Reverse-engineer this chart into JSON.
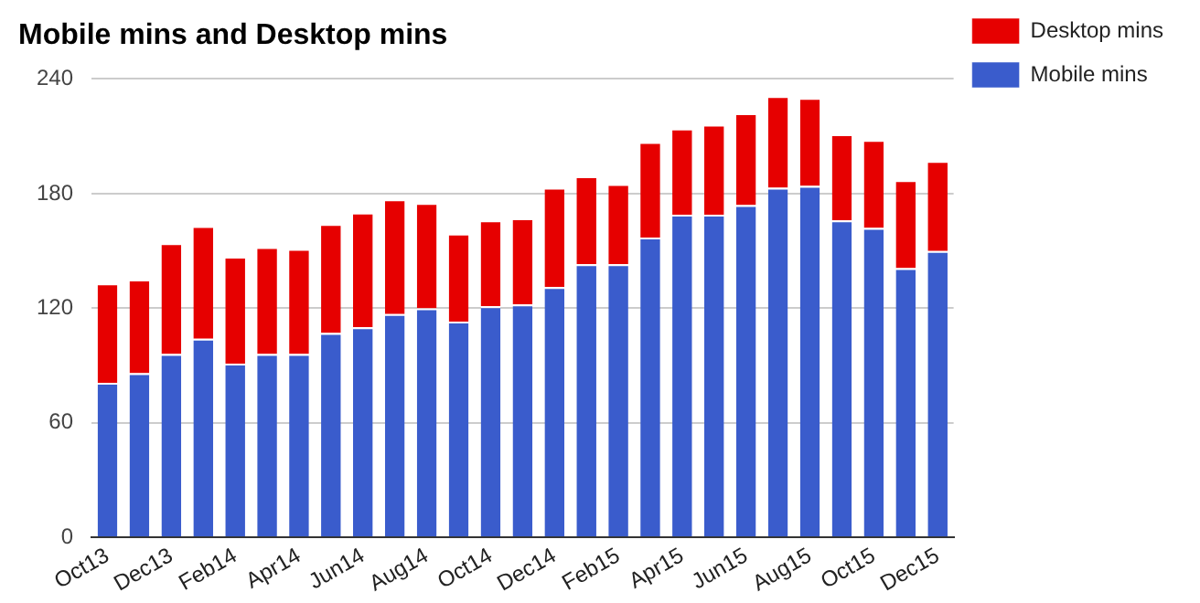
{
  "chart_data": {
    "type": "bar",
    "title": "Mobile mins and Desktop mins",
    "stacked": true,
    "categories": [
      "Oct13",
      null,
      "Dec13",
      null,
      "Feb14",
      null,
      "Apr14",
      null,
      "Jun14",
      null,
      "Aug14",
      null,
      "Oct14",
      null,
      "Dec14",
      null,
      "Feb15",
      null,
      "Apr15",
      null,
      "Jun15",
      null,
      "Aug15",
      null,
      "Oct15",
      null,
      "Dec15"
    ],
    "series": [
      {
        "name": "Mobile mins",
        "color": "#3a5ccc",
        "values": [
          81,
          86,
          96,
          104,
          91,
          96,
          96,
          107,
          110,
          117,
          120,
          113,
          121,
          122,
          131,
          143,
          143,
          157,
          169,
          169,
          174,
          183,
          184,
          166,
          162,
          141,
          150
        ]
      },
      {
        "name": "Desktop mins",
        "color": "#e60000",
        "values": [
          52,
          49,
          58,
          59,
          56,
          56,
          55,
          57,
          60,
          60,
          55,
          46,
          45,
          45,
          52,
          46,
          42,
          50,
          45,
          47,
          48,
          48,
          46,
          45,
          46,
          46,
          47
        ]
      }
    ],
    "ylim": [
      0,
      240
    ],
    "yticks": [
      0,
      60,
      120,
      180,
      240
    ],
    "grid": "y",
    "legend": "right"
  }
}
